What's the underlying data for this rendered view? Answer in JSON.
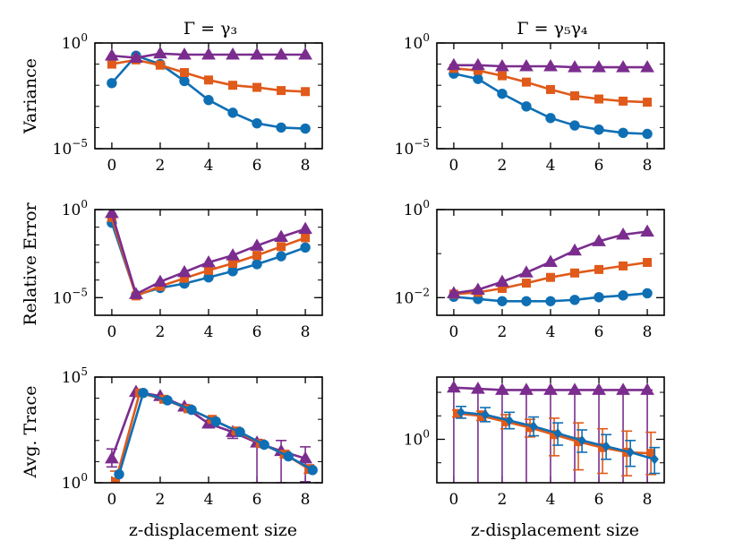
{
  "figure": {
    "xlabel": "z-displacement size",
    "col_titles": [
      "Γ = γ₃",
      "Γ = γ₅γ₄"
    ],
    "row_labels": [
      "Variance",
      "Relative Error",
      "Avg. Trace"
    ]
  },
  "colors": {
    "blue": "#0f6fb4",
    "orange": "#e05a1a",
    "purple": "#7b2d8e"
  },
  "chart_data": [
    {
      "id": "variance-gamma3",
      "type": "line",
      "row": 0,
      "col": 0,
      "title": "Γ = γ₃",
      "ylabel": "Variance",
      "xlabel": "",
      "yscale": "log",
      "ylim_exp": [
        -5,
        0
      ],
      "yticks": [
        {
          "exp": 0,
          "base": "10",
          "sup": "0"
        },
        {
          "exp": -5,
          "base": "10",
          "sup": "−5"
        }
      ],
      "xlim": [
        -0.7,
        8.7
      ],
      "xticks": [
        0,
        2,
        4,
        6,
        8
      ],
      "series": [
        {
          "name": "blue",
          "color": "blue",
          "marker": "circle",
          "x": [
            0,
            1,
            2,
            3,
            4,
            5,
            6,
            7,
            8
          ],
          "logy": [
            -1.9,
            -0.6,
            -1.0,
            -1.8,
            -2.7,
            -3.3,
            -3.8,
            -4.0,
            -4.05
          ]
        },
        {
          "name": "orange",
          "color": "orange",
          "marker": "square",
          "x": [
            0,
            1,
            2,
            3,
            4,
            5,
            6,
            7,
            8
          ],
          "logy": [
            -1.0,
            -0.8,
            -1.05,
            -1.4,
            -1.75,
            -2.0,
            -2.1,
            -2.25,
            -2.3
          ]
        },
        {
          "name": "purple",
          "color": "purple",
          "marker": "triangle",
          "x": [
            0,
            1,
            2,
            3,
            4,
            5,
            6,
            7,
            8
          ],
          "logy": [
            -0.6,
            -0.7,
            -0.5,
            -0.55,
            -0.55,
            -0.55,
            -0.55,
            -0.55,
            -0.55
          ]
        }
      ]
    },
    {
      "id": "variance-gamma5gamma4",
      "type": "line",
      "row": 0,
      "col": 1,
      "title": "Γ = γ₅γ₄",
      "ylabel": "",
      "xlabel": "",
      "yscale": "log",
      "ylim_exp": [
        -5,
        0
      ],
      "yticks": [
        {
          "exp": 0,
          "base": "10",
          "sup": "0"
        },
        {
          "exp": -5,
          "base": "10",
          "sup": "−5"
        }
      ],
      "xlim": [
        -0.7,
        8.7
      ],
      "xticks": [
        0,
        2,
        4,
        6,
        8
      ],
      "series": [
        {
          "name": "blue",
          "color": "blue",
          "marker": "circle",
          "x": [
            0,
            1,
            2,
            3,
            4,
            5,
            6,
            7,
            8
          ],
          "logy": [
            -1.45,
            -1.7,
            -2.4,
            -3.0,
            -3.55,
            -3.9,
            -4.1,
            -4.25,
            -4.3
          ]
        },
        {
          "name": "orange",
          "color": "orange",
          "marker": "square",
          "x": [
            0,
            1,
            2,
            3,
            4,
            5,
            6,
            7,
            8
          ],
          "logy": [
            -1.2,
            -1.3,
            -1.55,
            -1.85,
            -2.2,
            -2.5,
            -2.65,
            -2.75,
            -2.8
          ]
        },
        {
          "name": "purple",
          "color": "purple",
          "marker": "triangle",
          "x": [
            0,
            1,
            2,
            3,
            4,
            5,
            6,
            7,
            8
          ],
          "logy": [
            -1.05,
            -1.05,
            -1.1,
            -1.1,
            -1.1,
            -1.15,
            -1.15,
            -1.15,
            -1.15
          ]
        }
      ]
    },
    {
      "id": "relerr-gamma3",
      "type": "line",
      "row": 1,
      "col": 0,
      "title": "",
      "ylabel": "Relative Error",
      "xlabel": "",
      "yscale": "log",
      "ylim_exp": [
        -6,
        0
      ],
      "yticks": [
        {
          "exp": 0,
          "base": "10",
          "sup": "0"
        },
        {
          "exp": -5,
          "base": "10",
          "sup": "−5"
        }
      ],
      "xlim": [
        -0.7,
        8.7
      ],
      "xticks": [
        0,
        2,
        4,
        6,
        8
      ],
      "series": [
        {
          "name": "blue",
          "color": "blue",
          "marker": "circle",
          "x": [
            0,
            1,
            2,
            3,
            4,
            5,
            6,
            7,
            8
          ],
          "logy": [
            -0.75,
            -4.85,
            -4.45,
            -4.2,
            -3.85,
            -3.5,
            -3.1,
            -2.65,
            -2.15
          ]
        },
        {
          "name": "orange",
          "color": "orange",
          "marker": "square",
          "x": [
            0,
            1,
            2,
            3,
            4,
            5,
            6,
            7,
            8
          ],
          "logy": [
            -0.45,
            -4.9,
            -4.35,
            -3.9,
            -3.45,
            -3.05,
            -2.6,
            -2.1,
            -1.6
          ]
        },
        {
          "name": "purple",
          "color": "purple",
          "marker": "triangle",
          "x": [
            0,
            1,
            2,
            3,
            4,
            5,
            6,
            7,
            8
          ],
          "logy": [
            -0.2,
            -4.8,
            -4.1,
            -3.55,
            -3.0,
            -2.6,
            -2.05,
            -1.55,
            -1.1
          ]
        }
      ]
    },
    {
      "id": "relerr-gamma5gamma4",
      "type": "line",
      "row": 1,
      "col": 1,
      "title": "",
      "ylabel": "",
      "xlabel": "",
      "yscale": "log",
      "ylim_exp": [
        -2.4,
        0
      ],
      "yticks": [
        {
          "exp": 0,
          "base": "10",
          "sup": "0"
        },
        {
          "exp": -2,
          "base": "10",
          "sup": "−2"
        }
      ],
      "xlim": [
        -0.7,
        8.7
      ],
      "xticks": [
        0,
        2,
        4,
        6,
        8
      ],
      "series": [
        {
          "name": "blue",
          "color": "blue",
          "marker": "circle",
          "x": [
            0,
            1,
            2,
            3,
            4,
            5,
            6,
            7,
            8
          ],
          "logy": [
            -1.98,
            -2.03,
            -2.08,
            -2.08,
            -2.08,
            -2.05,
            -1.99,
            -1.95,
            -1.9
          ]
        },
        {
          "name": "orange",
          "color": "orange",
          "marker": "square",
          "x": [
            0,
            1,
            2,
            3,
            4,
            5,
            6,
            7,
            8
          ],
          "logy": [
            -1.92,
            -1.88,
            -1.79,
            -1.67,
            -1.54,
            -1.44,
            -1.36,
            -1.28,
            -1.2
          ]
        },
        {
          "name": "purple",
          "color": "purple",
          "marker": "triangle",
          "x": [
            0,
            1,
            2,
            3,
            4,
            5,
            6,
            7,
            8
          ],
          "logy": [
            -1.9,
            -1.82,
            -1.64,
            -1.43,
            -1.19,
            -0.93,
            -0.72,
            -0.57,
            -0.5
          ]
        }
      ]
    },
    {
      "id": "avgtrace-gamma3",
      "type": "line",
      "row": 2,
      "col": 0,
      "title": "",
      "ylabel": "Avg. Trace",
      "xlabel": "z-displacement size",
      "yscale": "log",
      "ylim_exp": [
        0,
        5
      ],
      "yticks": [
        {
          "exp": 5,
          "base": "10",
          "sup": "5"
        },
        {
          "exp": 0,
          "base": "10",
          "sup": "0"
        }
      ],
      "xlim": [
        -0.7,
        8.7
      ],
      "xticks": [
        0,
        2,
        4,
        6,
        8
      ],
      "series": [
        {
          "name": "purple",
          "color": "purple",
          "marker": "triangle",
          "x": [
            0,
            1,
            2,
            3,
            4,
            5,
            6,
            7,
            8
          ],
          "logy": [
            1.15,
            4.3,
            4.1,
            3.6,
            2.8,
            2.4,
            1.9,
            1.5,
            1.15
          ],
          "err_lo": [
            0.4,
            0,
            0,
            0.15,
            0.2,
            0.3,
            1.9,
            1.5,
            1.1
          ],
          "err_hi": [
            0.45,
            0,
            0,
            0.1,
            0.15,
            0.2,
            0.15,
            0.5,
            0.55
          ]
        },
        {
          "name": "orange",
          "color": "orange",
          "marker": "square",
          "x": [
            0.15,
            1.15,
            2.15,
            3.15,
            4.15,
            5.15,
            6.15,
            7.15,
            8.15
          ],
          "logy": [
            0.05,
            4.25,
            3.95,
            3.5,
            3.0,
            2.45,
            1.85,
            1.35,
            0.65
          ],
          "err_lo": [
            0.05,
            0,
            0,
            0,
            0.1,
            0.1,
            0.1,
            0.15,
            0.2
          ],
          "err_hi": [
            0.5,
            0,
            0,
            0,
            0.1,
            0.1,
            0.1,
            0.15,
            0.2
          ]
        },
        {
          "name": "blue",
          "color": "blue",
          "marker": "circle",
          "x": [
            0.3,
            1.3,
            2.3,
            3.3,
            4.3,
            5.3,
            6.3,
            7.3,
            8.3
          ],
          "logy": [
            0.4,
            4.25,
            3.9,
            3.45,
            2.9,
            2.4,
            1.8,
            1.25,
            0.6
          ],
          "err_lo": [
            0,
            0,
            0,
            0,
            0,
            0,
            0,
            0,
            0
          ],
          "err_hi": [
            0,
            0,
            0,
            0,
            0,
            0,
            0,
            0,
            0
          ]
        }
      ]
    },
    {
      "id": "avgtrace-gamma5gamma4",
      "type": "line",
      "row": 2,
      "col": 1,
      "title": "",
      "ylabel": "",
      "xlabel": "z-displacement size",
      "yscale": "log",
      "ylim_exp": [
        -1.85,
        2.65
      ],
      "yticks": [
        {
          "exp": 0,
          "base": "10",
          "sup": "0"
        }
      ],
      "xlim": [
        -0.7,
        8.7
      ],
      "xticks": [
        0,
        2,
        4,
        6,
        8
      ],
      "series": [
        {
          "name": "purple",
          "color": "purple",
          "marker": "triangle",
          "x": [
            0,
            1,
            2,
            3,
            4,
            5,
            6,
            7,
            8
          ],
          "logy": [
            2.2,
            2.15,
            2.1,
            2.1,
            2.1,
            2.1,
            2.1,
            2.1,
            2.1
          ],
          "err_lo": [
            5,
            5,
            5,
            5,
            5,
            5,
            5,
            5,
            5
          ],
          "err_hi": [
            0,
            0,
            0,
            0,
            0,
            0,
            0,
            0,
            0
          ]
        },
        {
          "name": "orange",
          "color": "orange",
          "marker": "square",
          "x": [
            0.15,
            1.15,
            2.15,
            3.15,
            4.15,
            5.15,
            6.15,
            7.15,
            8.15
          ],
          "logy": [
            1.1,
            1.0,
            0.75,
            0.5,
            0.2,
            -0.1,
            -0.35,
            -0.55,
            -0.6
          ],
          "err_lo": [
            0.15,
            0.2,
            0.3,
            0.4,
            0.9,
            1.2,
            1.1,
            1.0,
            0.9
          ],
          "err_hi": [
            0.15,
            0.2,
            0.3,
            0.35,
            0.7,
            0.8,
            0.8,
            0.9,
            0.9
          ]
        },
        {
          "name": "blue",
          "color": "blue",
          "marker": "diamond",
          "x": [
            0.3,
            1.3,
            2.3,
            3.3,
            4.3,
            5.3,
            6.3,
            7.3,
            8.3
          ],
          "logy": [
            1.15,
            1.05,
            0.8,
            0.55,
            0.25,
            -0.05,
            -0.3,
            -0.55,
            -0.85
          ],
          "err_lo": [
            0.25,
            0.3,
            0.35,
            0.4,
            0.5,
            0.5,
            0.55,
            0.6,
            0.6
          ],
          "err_hi": [
            0.25,
            0.3,
            0.35,
            0.4,
            0.45,
            0.45,
            0.5,
            0.5,
            0.5
          ]
        }
      ]
    }
  ]
}
